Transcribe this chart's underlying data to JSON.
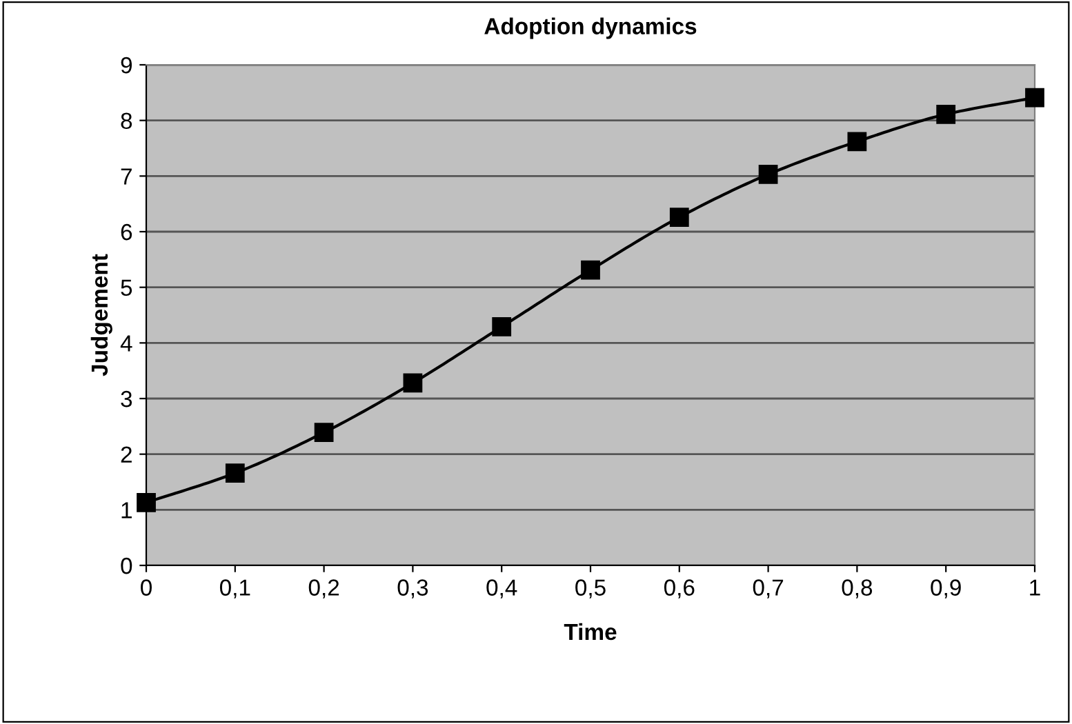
{
  "chart_data": {
    "type": "line",
    "title": "Adoption dynamics",
    "xlabel": "Time",
    "ylabel": "Judgement",
    "x": [
      0,
      0.1,
      0.2,
      0.3,
      0.4,
      0.5,
      0.6,
      0.7,
      0.8,
      0.9,
      1
    ],
    "series": [
      {
        "color": "#000000",
        "values": [
          1.13,
          1.66,
          2.39,
          3.28,
          4.29,
          5.31,
          6.26,
          7.03,
          7.62,
          8.11,
          8.41
        ]
      }
    ],
    "xlim": [
      0,
      1
    ],
    "xticks": [
      0,
      {
        "value": 0.1,
        "label": "0,1"
      },
      {
        "value": 0.2,
        "label": "0,2"
      },
      {
        "value": 0.3,
        "label": "0,3"
      },
      {
        "value": 0.4,
        "label": "0,4"
      },
      {
        "value": 0.5,
        "label": "0,5"
      },
      {
        "value": 0.6,
        "label": "0,6"
      },
      {
        "value": 0.7,
        "label": "0,7"
      },
      {
        "value": 0.8,
        "label": "0,8"
      },
      {
        "value": 0.9,
        "label": "0,9"
      },
      1
    ],
    "ylim": [
      0,
      9
    ],
    "yticks": [
      0,
      1,
      2,
      3,
      4,
      5,
      6,
      7,
      8,
      9
    ],
    "grid": "y",
    "marker": "square",
    "line_style": "solid",
    "legend": false
  }
}
